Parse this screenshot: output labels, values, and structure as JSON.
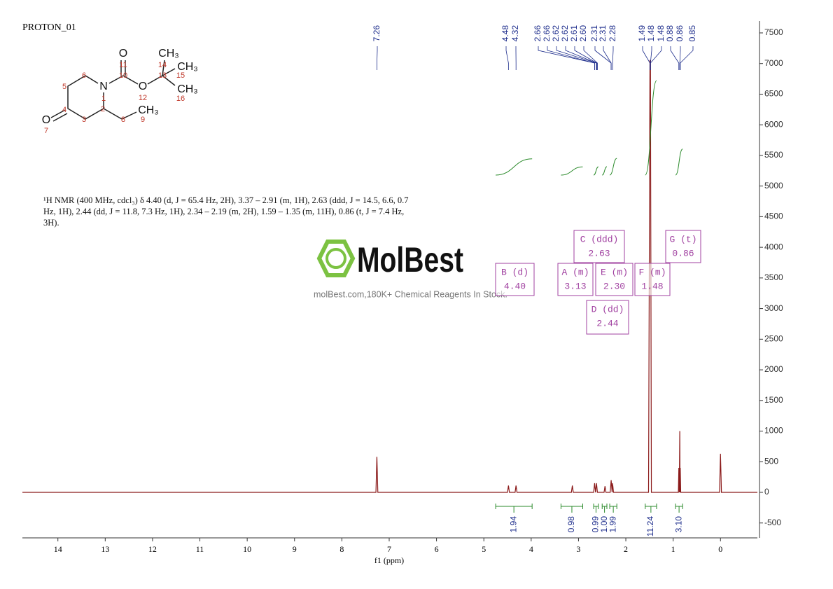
{
  "chart_data": {
    "type": "nmr",
    "title": "PROTON_01",
    "xlabel": "f1 (ppm)",
    "xlim": [
      14.75,
      -0.78
    ],
    "xticks": [
      14,
      13,
      12,
      11,
      10,
      9,
      8,
      7,
      6,
      5,
      4,
      3,
      2,
      1,
      0
    ],
    "ylim": [
      -743,
      7694
    ],
    "yticks": [
      -500,
      0,
      500,
      1000,
      1500,
      2000,
      2500,
      3000,
      3500,
      4000,
      4500,
      5000,
      5500,
      6000,
      6500,
      7000,
      7500
    ],
    "color": "#8b1a1a",
    "x": [
      14.75,
      7.28,
      7.26,
      7.24,
      4.5,
      4.48,
      4.46,
      4.34,
      4.32,
      4.3,
      3.15,
      3.13,
      3.11,
      2.68,
      2.66,
      2.64,
      2.62,
      2.6,
      2.46,
      2.44,
      2.42,
      2.33,
      2.31,
      2.29,
      2.28,
      2.26,
      1.52,
      1.49,
      1.48,
      1.46,
      0.89,
      0.88,
      0.87,
      0.86,
      0.855,
      0.85,
      0.84,
      0.02,
      0,
      -0.02,
      -0.78
    ],
    "values": [
      0,
      0,
      580,
      0,
      0,
      110,
      0,
      0,
      110,
      0,
      0,
      110,
      0,
      0,
      150,
      0,
      150,
      0,
      0,
      100,
      0,
      0,
      200,
      0,
      150,
      0,
      0,
      7050,
      7050,
      0,
      0,
      400,
      0,
      1000,
      0,
      400,
      0,
      0,
      630,
      0,
      0
    ],
    "peak_labels": {
      "x": [
        7.26,
        4.48,
        4.32,
        2.66,
        2.66,
        2.62,
        2.62,
        2.61,
        2.6,
        2.31,
        2.31,
        2.28,
        1.49,
        1.48,
        1.48,
        0.88,
        0.86,
        0.85
      ],
      "value_labels": [
        "7.26",
        "4.48",
        "4.32",
        "2.66",
        "2.66",
        "2.62",
        "2.62",
        "2.61",
        "2.60",
        "2.31",
        "2.31",
        "2.28",
        "1.49",
        "1.48",
        "1.48",
        "0.88",
        "0.86",
        "0.85"
      ]
    },
    "integrals": {
      "ranges": [
        [
          4.75,
          3.98
        ],
        [
          3.37,
          2.91
        ],
        [
          2.68,
          2.58
        ],
        [
          2.5,
          2.4
        ],
        [
          2.34,
          2.19
        ],
        [
          1.59,
          1.35
        ],
        [
          0.95,
          0.8
        ]
      ],
      "values": [
        1.94,
        0.98,
        0.99,
        1.0,
        1.99,
        11.24,
        3.1
      ],
      "value_labels": [
        "1.94",
        "0.98",
        "0.99",
        "1.00",
        "1.99",
        "11.24",
        "3.10"
      ]
    },
    "multiplets": [
      {
        "label": "B (d)",
        "shift": "4.40"
      },
      {
        "label": "A (m)",
        "shift": "3.13"
      },
      {
        "label": "E (m)",
        "shift": "2.30"
      },
      {
        "label": "F (m)",
        "shift": "1.48"
      },
      {
        "label": "C (ddd)",
        "shift": "2.63"
      },
      {
        "label": "G (t)",
        "shift": "0.86"
      },
      {
        "label": "D (dd)",
        "shift": "2.44"
      }
    ],
    "description": "¹H NMR (400 MHz, cdcl₃) δ 4.40 (d, J = 65.4 Hz, 2H), 3.37 – 2.91 (m, 1H), 2.63 (ddd, J = 14.5, 6.6, 0.7 Hz, 1H), 2.44 (dd, J = 11.8, 7.3 Hz, 1H), 2.34 – 2.19 (m, 2H), 1.59 – 1.35 (m, 11H), 0.86 (t, J = 7.4 Hz, 3H).",
    "watermark": {
      "brand": "MolBest",
      "tagline": "molBest.com,180K+ Chemical Reagents In Stock."
    },
    "structure": {
      "atoms": [
        "O",
        "N",
        "O",
        "O",
        "CH₃",
        "CH₃",
        "CH₃",
        "CH₃"
      ],
      "numbers": [
        "1",
        "2",
        "3",
        "4",
        "5",
        "6",
        "7",
        "8",
        "9",
        "10",
        "11",
        "12",
        "13",
        "14",
        "15",
        "16"
      ]
    }
  }
}
